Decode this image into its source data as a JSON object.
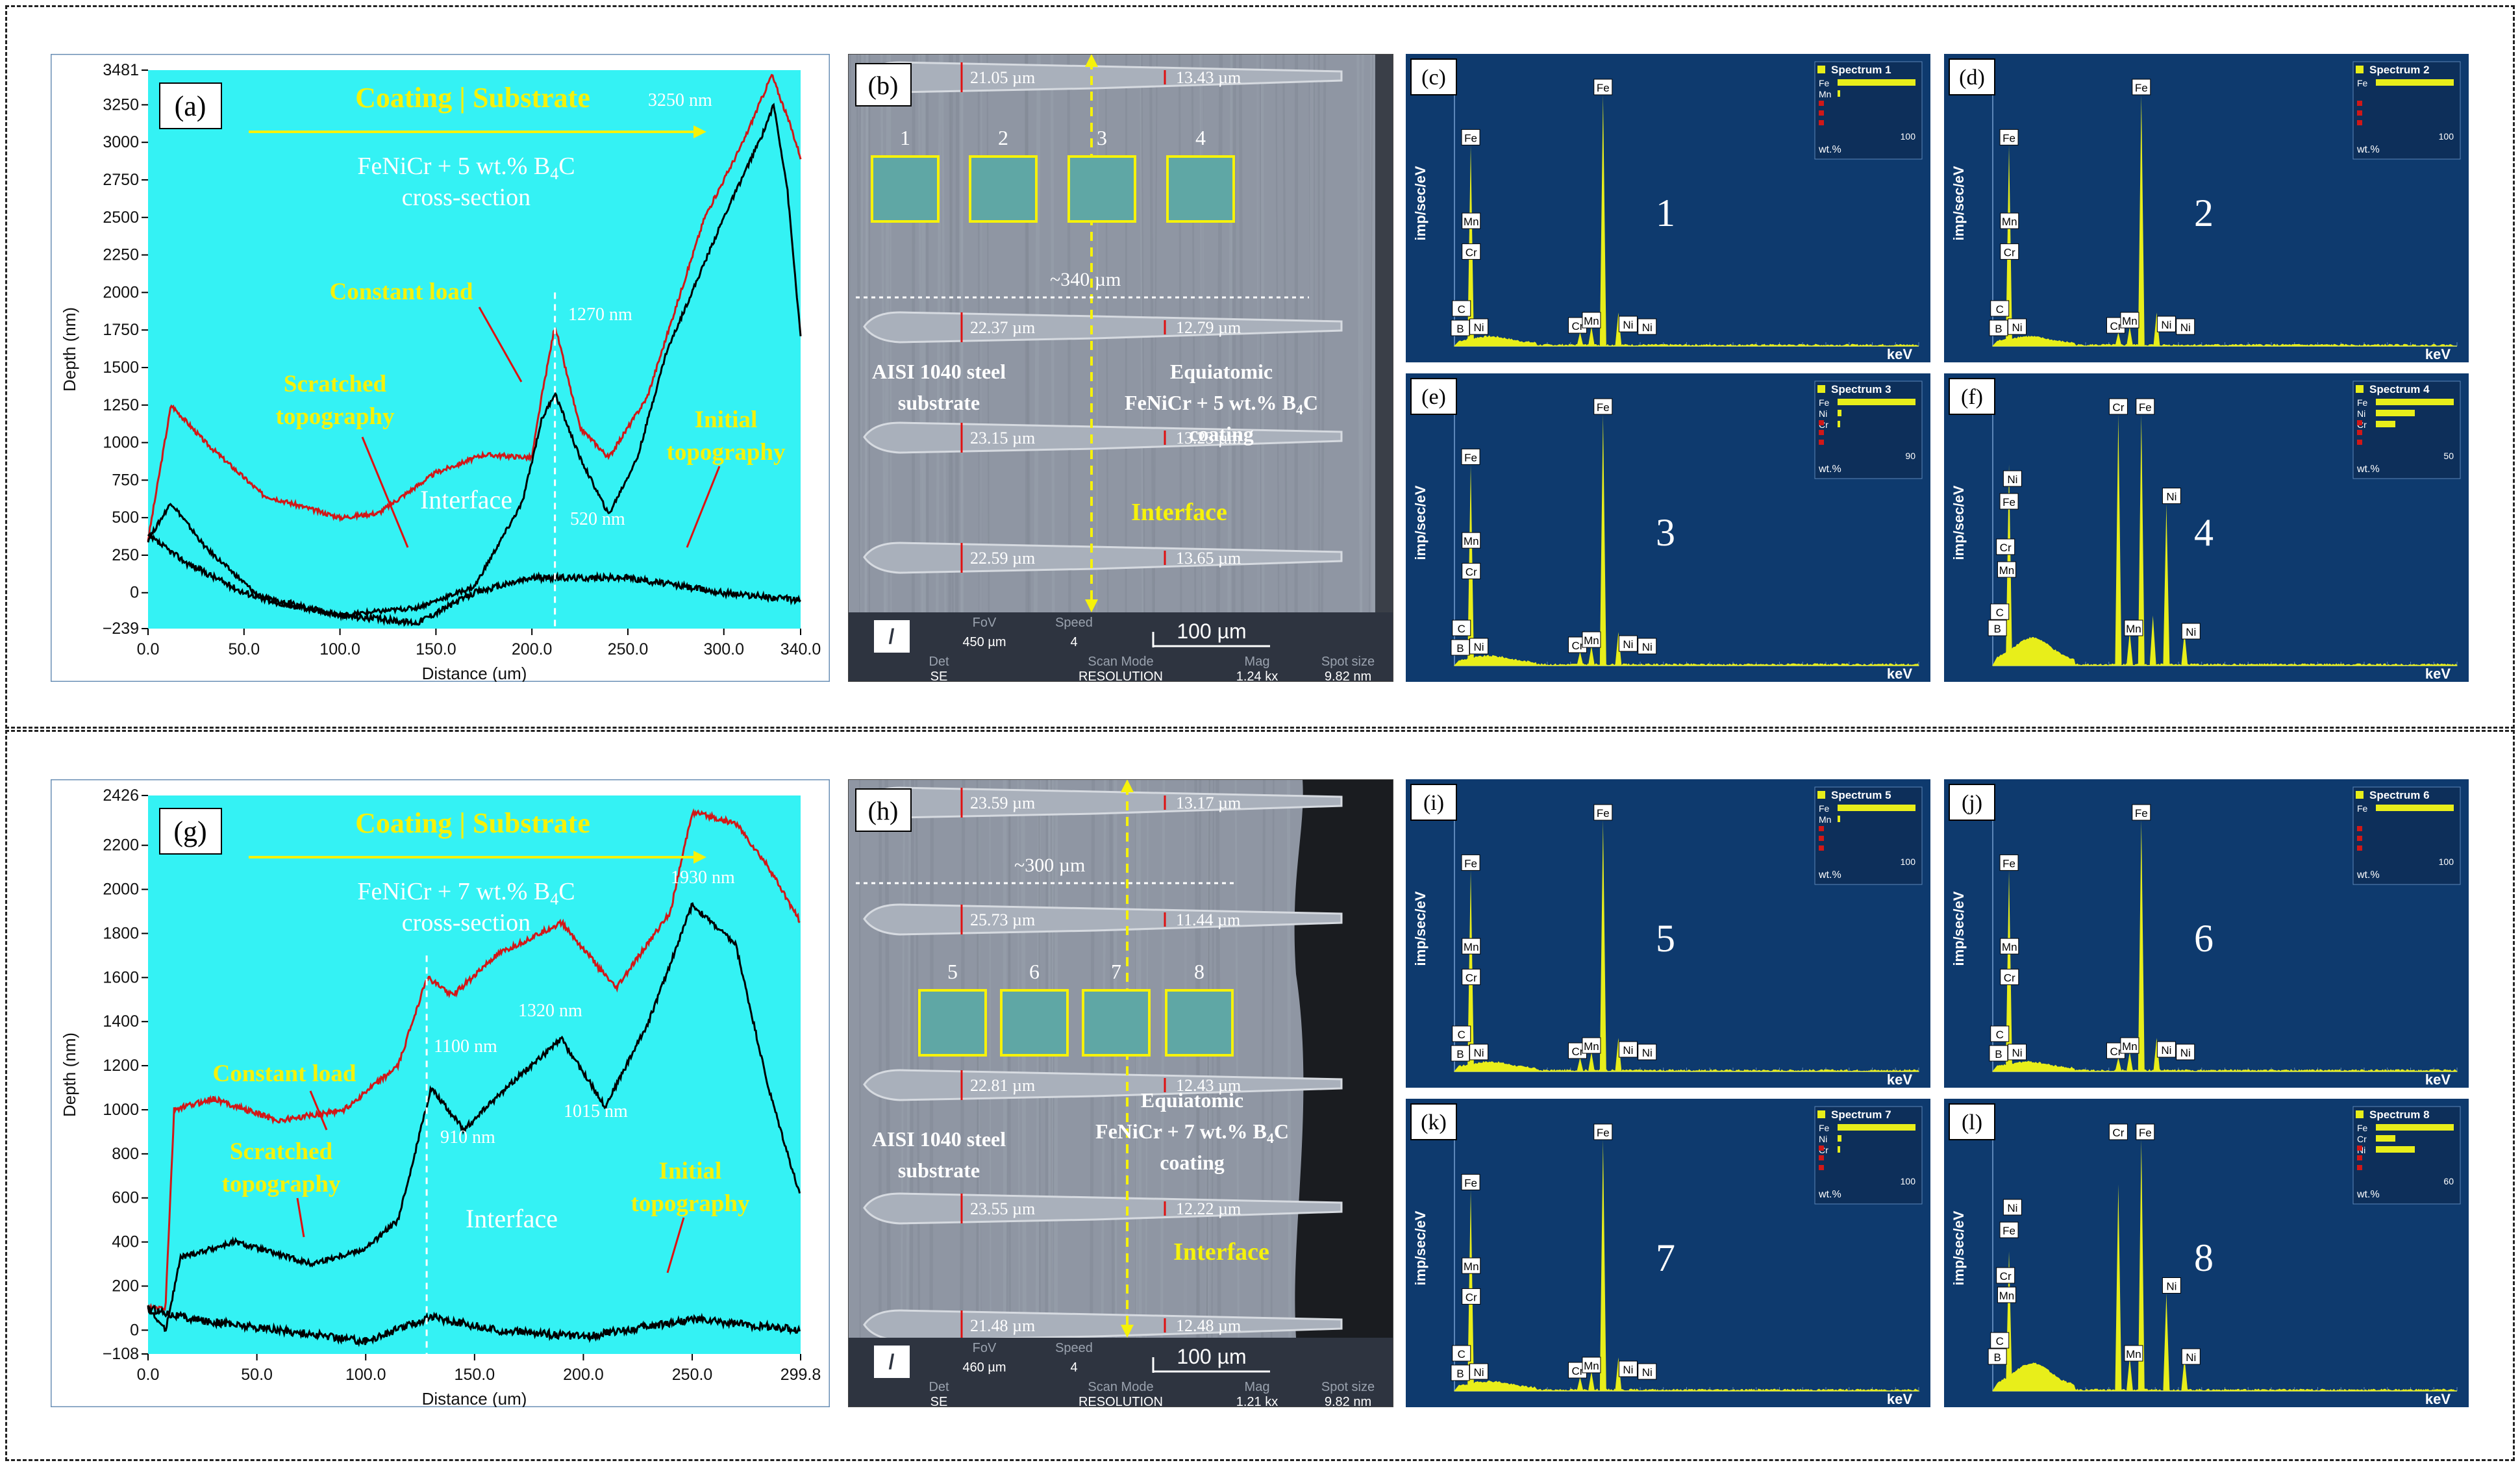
{
  "rows": [
    {
      "profile": {
        "letter": "(a)",
        "title": "Coating | Substrate",
        "subtitle_line1": "FeNiCr + 5 wt.% B",
        "subtitle_sub": "4",
        "subtitle_line1_tail": "C",
        "subtitle_line2": "cross-section",
        "label_constant": "Constant load",
        "label_scratched_1": "Scratched",
        "label_scratched_2": "topography",
        "label_initial_1": "Initial",
        "label_initial_2": "topography",
        "label_interface": "Interface",
        "annotations": [
          "3250 nm",
          "1270 nm",
          "520 nm"
        ],
        "xlabel": "Distance (um)",
        "ylabel": "Depth (nm)",
        "xticks": [
          "0.0",
          "50.0",
          "100.0",
          "150.0",
          "200.0",
          "250.0",
          "300.0",
          "340.0"
        ],
        "yticks": [
          "3481",
          "3250",
          "3000",
          "2750",
          "2500",
          "2250",
          "2000",
          "1750",
          "1500",
          "1250",
          "1000",
          "750",
          "500",
          "250",
          "0",
          "−239"
        ]
      },
      "sem": {
        "letter": "(b)",
        "widths_left": [
          "21.05 µm",
          "22.37 µm",
          "23.15 µm",
          "22.59 µm"
        ],
        "widths_right": [
          "13.43 µm",
          "12.79 µm",
          "13.23 µm",
          "13.65 µm"
        ],
        "span": "~340 µm",
        "box_numbers": [
          "1",
          "2",
          "3",
          "4"
        ],
        "substrate_1": "AISI 1040 steel",
        "substrate_2": "substrate",
        "coating_1": "Equiatomic",
        "coating_2": "FeNiCr + 5 wt.% B",
        "coating_2_sub": "4",
        "coating_2_tail": "C",
        "coating_3": "coating",
        "interface": "Interface",
        "footer_fov_label": "FoV",
        "footer_fov": "450 µm",
        "footer_speed_label": "Speed",
        "footer_speed": "4",
        "footer_scalebar": "100 µm",
        "footer_det_label": "Det",
        "footer_det": "SE",
        "footer_scan_label": "Scan Mode",
        "footer_scan": "RESOLUTION",
        "footer_mag_label": "Mag",
        "footer_mag": "1.24 kx",
        "footer_spot_label": "Spot size",
        "footer_spot": "9.82 nm"
      },
      "eds": [
        {
          "letter": "(c)",
          "spectrum": "Spectrum 1",
          "number": "1",
          "legend": [
            "Fe",
            "Mn"
          ],
          "scale": "100"
        },
        {
          "letter": "(d)",
          "spectrum": "Spectrum 2",
          "number": "2",
          "legend": [
            "Fe"
          ],
          "scale": "100"
        },
        {
          "letter": "(e)",
          "spectrum": "Spectrum 3",
          "number": "3",
          "legend": [
            "Fe",
            "Ni",
            "Cr"
          ],
          "scale": "90"
        },
        {
          "letter": "(f)",
          "spectrum": "Spectrum 4",
          "number": "4",
          "legend": [
            "Fe",
            "Ni",
            "Cr"
          ],
          "scale": "50"
        }
      ]
    },
    {
      "profile": {
        "letter": "(g)",
        "title": "Coating | Substrate",
        "subtitle_line1": "FeNiCr + 7 wt.% B",
        "subtitle_sub": "4",
        "subtitle_line1_tail": "C",
        "subtitle_line2": "cross-section",
        "label_constant": "Constant load",
        "label_scratched_1": "Scratched",
        "label_scratched_2": "topography",
        "label_initial_1": "Initial",
        "label_initial_2": "topography",
        "label_interface": "Interface",
        "annotations": [
          "1930 nm",
          "1320 nm",
          "1100 nm",
          "1015 nm",
          "910 nm"
        ],
        "xlabel": "Distance (um)",
        "ylabel": "Depth (nm)",
        "xticks": [
          "0.0",
          "50.0",
          "100.0",
          "150.0",
          "200.0",
          "250.0",
          "299.8"
        ],
        "yticks": [
          "2426",
          "2200",
          "2000",
          "1800",
          "1600",
          "1400",
          "1200",
          "1000",
          "800",
          "600",
          "400",
          "200",
          "0",
          "−108"
        ]
      },
      "sem": {
        "letter": "(h)",
        "widths_left": [
          "23.59 µm",
          "25.73 µm",
          "22.81 µm",
          "23.55 µm",
          "21.48 µm"
        ],
        "widths_right": [
          "13.17 µm",
          "11.44 µm",
          "12.43 µm",
          "12.22 µm",
          "12.48 µm"
        ],
        "span": "~300 µm",
        "box_numbers": [
          "5",
          "6",
          "7",
          "8"
        ],
        "substrate_1": "AISI 1040 steel",
        "substrate_2": "substrate",
        "coating_1": "Equiatomic",
        "coating_2": "FeNiCr + 7 wt.% B",
        "coating_2_sub": "4",
        "coating_2_tail": "C",
        "coating_3": "coating",
        "interface": "Interface",
        "footer_fov_label": "FoV",
        "footer_fov": "460 µm",
        "footer_speed_label": "Speed",
        "footer_speed": "4",
        "footer_scalebar": "100 µm",
        "footer_det_label": "Det",
        "footer_det": "SE",
        "footer_scan_label": "Scan Mode",
        "footer_scan": "RESOLUTION",
        "footer_mag_label": "Mag",
        "footer_mag": "1.21 kx",
        "footer_spot_label": "Spot size",
        "footer_spot": "9.82 nm"
      },
      "eds": [
        {
          "letter": "(i)",
          "spectrum": "Spectrum 5",
          "number": "5",
          "legend": [
            "Fe",
            "Mn"
          ],
          "scale": "100"
        },
        {
          "letter": "(j)",
          "spectrum": "Spectrum 6",
          "number": "6",
          "legend": [
            "Fe"
          ],
          "scale": "100"
        },
        {
          "letter": "(k)",
          "spectrum": "Spectrum 7",
          "number": "7",
          "legend": [
            "Fe",
            "Ni",
            "Cr"
          ],
          "scale": "100"
        },
        {
          "letter": "(l)",
          "spectrum": "Spectrum 8",
          "number": "8",
          "legend": [
            "Fe",
            "Cr",
            "Ni"
          ],
          "scale": "60"
        }
      ]
    }
  ],
  "eds_common": {
    "ylabel": "imp/sec/eV",
    "xlabel": "keV",
    "wt_label": "wt.%"
  },
  "chart_data": [
    {
      "type": "line",
      "title": "",
      "xlabel": "Distance (um)",
      "ylabel": "Depth (nm)",
      "xlim": [
        0,
        340
      ],
      "ylim": [
        -239,
        3481
      ],
      "series": [
        {
          "color": "#d01818",
          "x": [
            0,
            12,
            30,
            60,
            100,
            120,
            150,
            175,
            200,
            205,
            212,
            225,
            240,
            260,
            290,
            310,
            325,
            335,
            340
          ],
          "values": [
            350,
            1250,
            1000,
            650,
            500,
            530,
            800,
            920,
            900,
            1300,
            1780,
            1100,
            900,
            1300,
            2500,
            3000,
            3450,
            3100,
            2900
          ]
        },
        {
          "color": "#000000",
          "x": [
            0,
            12,
            30,
            60,
            100,
            140,
            170,
            195,
            205,
            212,
            225,
            240,
            255,
            270,
            300,
            320,
            326,
            333,
            340
          ],
          "values": [
            350,
            600,
            300,
            -50,
            -150,
            -100,
            40,
            600,
            1150,
            1330,
            900,
            520,
            900,
            1600,
            2500,
            3050,
            3250,
            2700,
            1700
          ]
        },
        {
          "color": "#000000",
          "x": [
            0,
            20,
            50,
            100,
            140,
            170,
            200,
            250,
            300,
            340
          ],
          "values": [
            380,
            200,
            0,
            -150,
            -200,
            0,
            100,
            100,
            0,
            -50
          ]
        }
      ]
    },
    {
      "type": "line",
      "title": "",
      "xlabel": "Distance (um)",
      "ylabel": "Depth (nm)",
      "xlim": [
        0,
        299.8
      ],
      "ylim": [
        -108,
        2426
      ],
      "series": [
        {
          "color": "#d01818",
          "x": [
            0,
            8,
            12,
            30,
            60,
            90,
            115,
            128,
            140,
            160,
            190,
            215,
            240,
            250,
            270,
            285,
            299.8
          ],
          "values": [
            100,
            100,
            1000,
            1050,
            950,
            1000,
            1200,
            1600,
            1520,
            1700,
            1850,
            1550,
            1900,
            2350,
            2300,
            2100,
            1850
          ]
        },
        {
          "color": "#000000",
          "x": [
            0,
            8,
            15,
            40,
            75,
            100,
            115,
            130,
            145,
            170,
            190,
            210,
            230,
            250,
            270,
            285,
            299.8
          ],
          "values": [
            100,
            0,
            330,
            400,
            300,
            370,
            500,
            1100,
            910,
            1150,
            1320,
            1015,
            1400,
            1930,
            1750,
            1100,
            600
          ]
        },
        {
          "color": "#000000",
          "x": [
            0,
            20,
            60,
            100,
            130,
            160,
            200,
            250,
            299.8
          ],
          "values": [
            100,
            50,
            0,
            -50,
            60,
            0,
            -30,
            50,
            0
          ]
        }
      ]
    }
  ]
}
